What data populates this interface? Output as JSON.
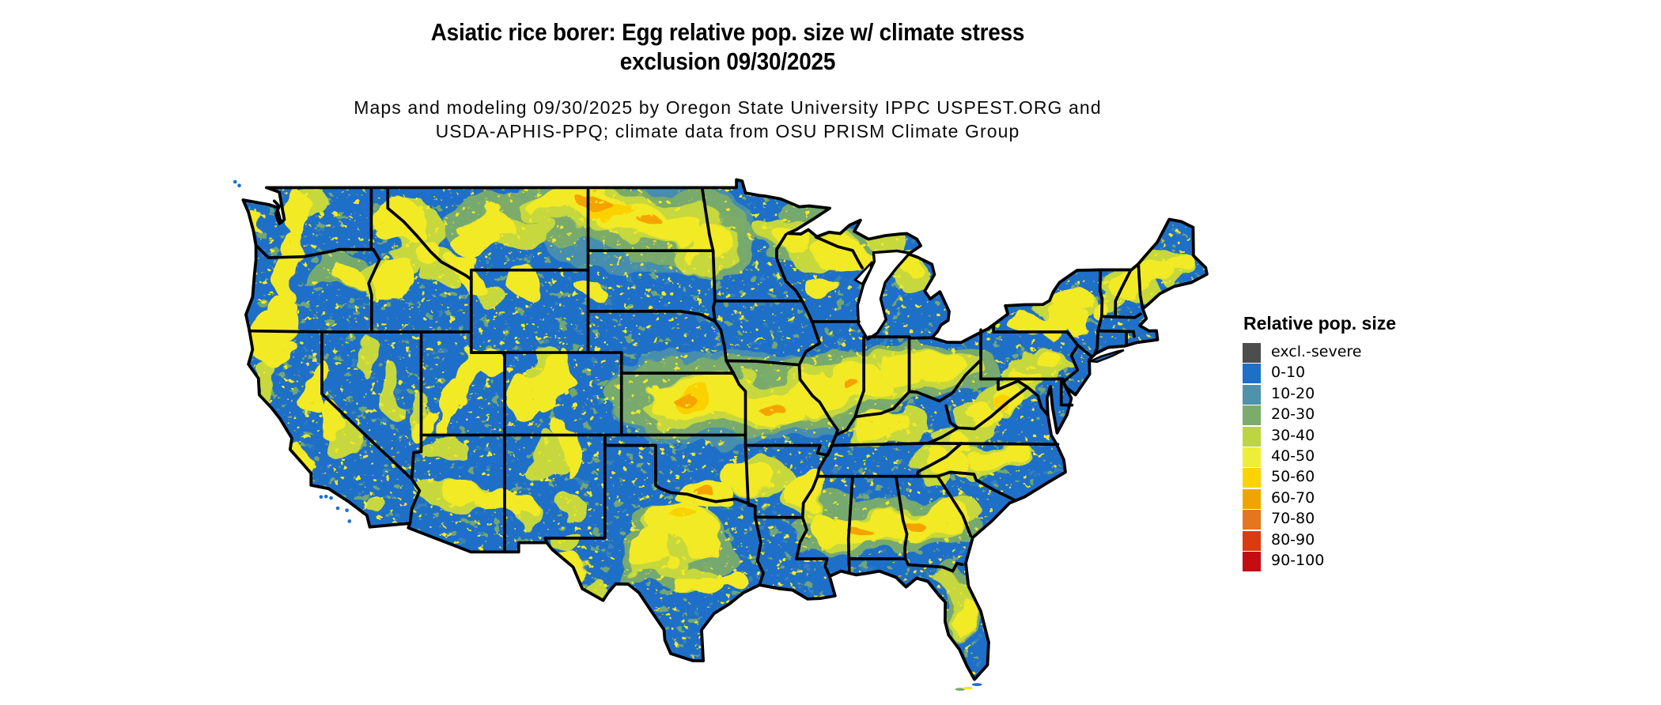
{
  "header": {
    "title_line1": "Asiatic rice borer: Egg relative pop. size w/ climate stress",
    "title_line2": "exclusion 09/30/2025",
    "subtitle_line1": "Maps and modeling 09/30/2025 by Oregon State University IPPC USPEST.ORG and",
    "subtitle_line2": "USDA-APHIS-PPQ; climate data from OSU PRISM Climate Group"
  },
  "legend": {
    "title": "Relative pop. size",
    "items": [
      {
        "label": "excl.-severe",
        "color": "#4d4d4d"
      },
      {
        "label": "0-10",
        "color": "#1e6fc8"
      },
      {
        "label": "10-20",
        "color": "#4e93a9"
      },
      {
        "label": "20-30",
        "color": "#7bac6c"
      },
      {
        "label": "30-40",
        "color": "#bdd53f"
      },
      {
        "label": "40-50",
        "color": "#eeee39"
      },
      {
        "label": "50-60",
        "color": "#fbd303"
      },
      {
        "label": "60-70",
        "color": "#f0a403"
      },
      {
        "label": "70-80",
        "color": "#e4761d"
      },
      {
        "label": "80-90",
        "color": "#db3b10"
      },
      {
        "label": "90-100",
        "color": "#c40d12"
      }
    ]
  },
  "map": {
    "base_color": "#1e6fc8",
    "water_color": "#ffffff",
    "border_color": "#000000",
    "overlay_colors": {
      "t": "#4e93a9",
      "o": "#7bac6c",
      "g": "#c6d83c",
      "y": "#f3ea25",
      "d": "#fcd103",
      "r": "#f5a302"
    }
  }
}
